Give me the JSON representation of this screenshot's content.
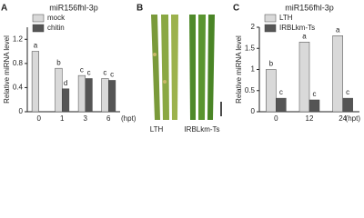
{
  "chart_data": [
    {
      "type": "bar",
      "panel": "A",
      "title": "miR156fhl-3p",
      "y_label": "Relative miRNA level",
      "x_unit": "(hpt)",
      "categories": [
        "0",
        "1",
        "3",
        "6"
      ],
      "series": [
        {
          "name": "mock",
          "color": "#d9d9d9",
          "values": [
            1.0,
            0.72,
            0.6,
            0.55
          ],
          "letters": [
            "a",
            "b",
            "c",
            "c"
          ]
        },
        {
          "name": "chitin",
          "color": "#555555",
          "values": [
            null,
            0.38,
            0.55,
            0.52
          ],
          "letters": [
            null,
            "d",
            "c",
            "c"
          ]
        }
      ],
      "ylim": [
        0,
        1.4
      ],
      "yticks": [
        0,
        0.4,
        0.8,
        1.2
      ]
    },
    {
      "type": "bar",
      "panel": "C",
      "title": "miR156fhl-3p",
      "y_label": "Relative miRNA level",
      "x_unit": "(hpt)",
      "categories": [
        "0",
        "12",
        "24"
      ],
      "series": [
        {
          "name": "LTH",
          "color": "#d9d9d9",
          "values": [
            1.0,
            1.65,
            1.8
          ],
          "letters": [
            "b",
            "a",
            "a"
          ]
        },
        {
          "name": "IRBLkm-Ts",
          "color": "#555555",
          "values": [
            0.32,
            0.28,
            0.32
          ],
          "letters": [
            "c",
            "c",
            "c"
          ]
        }
      ],
      "ylim": [
        0,
        2
      ],
      "yticks": [
        0,
        0.5,
        1,
        1.5,
        2
      ]
    }
  ],
  "photo_panel": {
    "panel": "B",
    "captions": [
      "LTH",
      "IRBLkm-Ts"
    ]
  }
}
